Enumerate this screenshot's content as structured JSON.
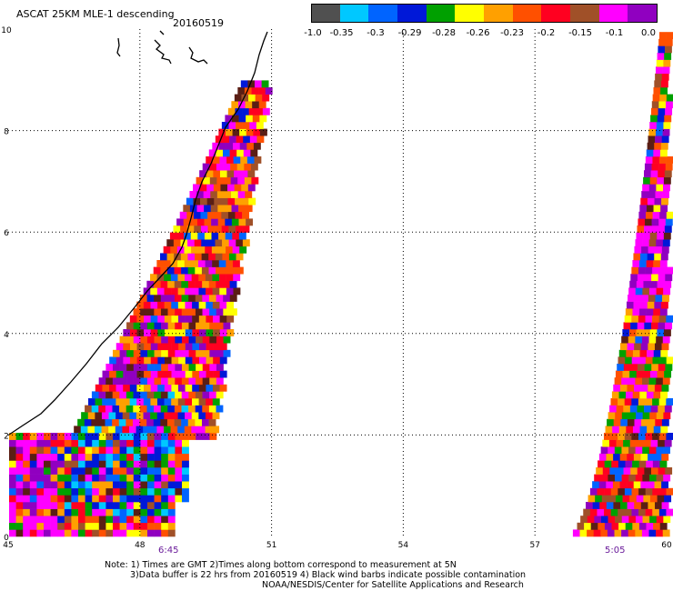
{
  "title": "ASCAT 25KM MLE-1 descending",
  "date": "20160519",
  "colorbar": {
    "labels": [
      "-1.0",
      "-0.35",
      "-0.3",
      "-0.29",
      "-0.28",
      "-0.26",
      "-0.23",
      "-0.2",
      "-0.15",
      "-0.1",
      "0.0"
    ],
    "colors": [
      "#505050",
      "#00c8ff",
      "#0064ff",
      "#0018d8",
      "#00a000",
      "#ffff00",
      "#ffa000",
      "#ff5000",
      "#ff0020",
      "#a05028",
      "#ff00ff",
      "#9000c0"
    ]
  },
  "axes": {
    "x_ticks": [
      "45",
      "48",
      "51",
      "54",
      "57",
      "60"
    ],
    "y_ticks": [
      "0",
      "2",
      "4",
      "6",
      "8",
      "10"
    ]
  },
  "pass_times": [
    "6:45",
    "5:05"
  ],
  "notes": {
    "line1": "Note: 1) Times are GMT 2)Times along bottom correspond to measurement at 5N",
    "line2": "3)Data buffer is 22 hrs from 20160519 4) Black wind barbs indicate possible contamination",
    "line3": "NOAA/NESDIS/Center for Satellite Applications and Research"
  }
}
